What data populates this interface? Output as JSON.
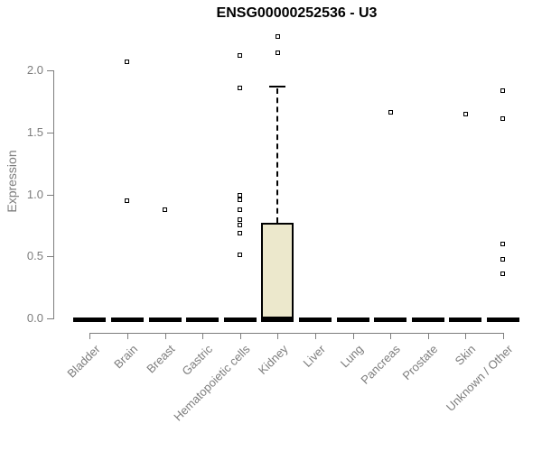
{
  "chart_data": {
    "type": "boxplot",
    "title": "ENSG00000252536 - U3",
    "ylabel": "Expression",
    "xlabel": "",
    "yticks": [
      "0.0",
      "0.5",
      "1.0",
      "1.5",
      "2.0"
    ],
    "ylim": [
      0,
      2.3
    ],
    "grid": false,
    "legend": false,
    "categories": [
      "Bladder",
      "Brain",
      "Breast",
      "Gastric",
      "Hematopoietic cells",
      "Kidney",
      "Liver",
      "Lung",
      "Pancreas",
      "Prostate",
      "Skin",
      "Unknown / Other"
    ],
    "boxes": [
      {
        "category": "Bladder",
        "median": 0,
        "q1": 0,
        "q3": 0,
        "whisker_low": 0,
        "whisker_high": 0,
        "outliers": []
      },
      {
        "category": "Brain",
        "median": 0,
        "q1": 0,
        "q3": 0,
        "whisker_low": 0,
        "whisker_high": 0,
        "outliers": [
          2.07,
          0.95
        ]
      },
      {
        "category": "Breast",
        "median": 0,
        "q1": 0,
        "q3": 0,
        "whisker_low": 0,
        "whisker_high": 0,
        "outliers": [
          0.88
        ]
      },
      {
        "category": "Gastric",
        "median": 0,
        "q1": 0,
        "q3": 0,
        "whisker_low": 0,
        "whisker_high": 0,
        "outliers": []
      },
      {
        "category": "Hematopoietic cells",
        "median": 0,
        "q1": 0,
        "q3": 0,
        "whisker_low": 0,
        "whisker_high": 0,
        "outliers": [
          2.12,
          1.86,
          0.99,
          0.96,
          0.88,
          0.8,
          0.75,
          0.69,
          0.51
        ]
      },
      {
        "category": "Kidney",
        "median": 0,
        "q1": 0,
        "q3": 0.77,
        "whisker_low": 0,
        "whisker_high": 1.87,
        "outliers": [
          2.27,
          2.14
        ]
      },
      {
        "category": "Liver",
        "median": 0,
        "q1": 0,
        "q3": 0,
        "whisker_low": 0,
        "whisker_high": 0,
        "outliers": []
      },
      {
        "category": "Lung",
        "median": 0,
        "q1": 0,
        "q3": 0,
        "whisker_low": 0,
        "whisker_high": 0,
        "outliers": []
      },
      {
        "category": "Pancreas",
        "median": 0,
        "q1": 0,
        "q3": 0,
        "whisker_low": 0,
        "whisker_high": 0,
        "outliers": [
          1.66
        ]
      },
      {
        "category": "Prostate",
        "median": 0,
        "q1": 0,
        "q3": 0,
        "whisker_low": 0,
        "whisker_high": 0,
        "outliers": []
      },
      {
        "category": "Skin",
        "median": 0,
        "q1": 0,
        "q3": 0,
        "whisker_low": 0,
        "whisker_high": 0,
        "outliers": []
      },
      {
        "category": "Unknown / Other",
        "median": 0,
        "q1": 0,
        "q3": 0,
        "whisker_low": 0,
        "whisker_high": 0,
        "outliers": []
      }
    ],
    "extra_points": {
      "Skin": [
        1.65
      ],
      "Unknown / Other": [
        1.84,
        1.61,
        0.6,
        0.48,
        0.36
      ]
    },
    "colors": {
      "box_fill": "#ECE8CC",
      "box_border": "#000000",
      "median": "#000000",
      "outlier": "#000000",
      "axis": "#7D7D7D",
      "text_gray": "#7D7D7D",
      "title_color": "#000000",
      "background": "#FFFFFF"
    }
  }
}
